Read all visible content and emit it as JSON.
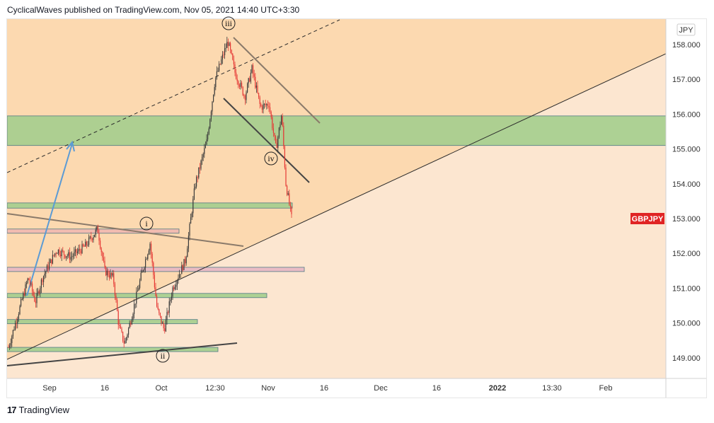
{
  "header": {
    "publisher_line": "CyclicalWaves published on TradingView.com, Nov 05, 2021 14:40 UTC+3:30"
  },
  "footer": {
    "brand": "TradingView",
    "logo_icon": "tradingview-logo-icon"
  },
  "chart_data": {
    "type": "candlestick",
    "symbol": "GBPJPY",
    "currency": "JPY",
    "last_price_label": "GBPJPY",
    "y_ticks": [
      "158.000",
      "157.000",
      "156.000",
      "155.000",
      "154.000",
      "153.000",
      "152.000",
      "151.000",
      "150.000",
      "149.000"
    ],
    "x_ticks": [
      "Sep",
      "16",
      "Oct",
      "12:30",
      "Nov",
      "16",
      "Dec",
      "16",
      "2022",
      "13:30",
      "Feb"
    ],
    "ylim": [
      148.4,
      158.8
    ],
    "wave_labels": [
      "i",
      "ii",
      "iii",
      "iv"
    ],
    "zones": [
      {
        "low": 155.1,
        "high": 155.95,
        "color": "#a5cf8e"
      },
      {
        "low": 153.3,
        "high": 153.45,
        "color": "#a5cf8e"
      },
      {
        "low": 152.6,
        "high": 152.7,
        "color": "#f0b8b0"
      },
      {
        "low": 151.5,
        "high": 151.6,
        "color": "#e8b8c4"
      },
      {
        "low": 150.75,
        "high": 150.85,
        "color": "#a5cf8e"
      },
      {
        "low": 150.0,
        "high": 150.1,
        "color": "#a5cf8e"
      },
      {
        "low": 149.2,
        "high": 149.3,
        "color": "#a5cf8e"
      }
    ],
    "colors": {
      "up": "#3a3a3a",
      "down": "#e53935",
      "background_upper": "#fcd9b0",
      "background_lower": "#fce6d0",
      "label_bg": "#e02424",
      "arrow": "#5b9bd5"
    },
    "grid": false
  }
}
